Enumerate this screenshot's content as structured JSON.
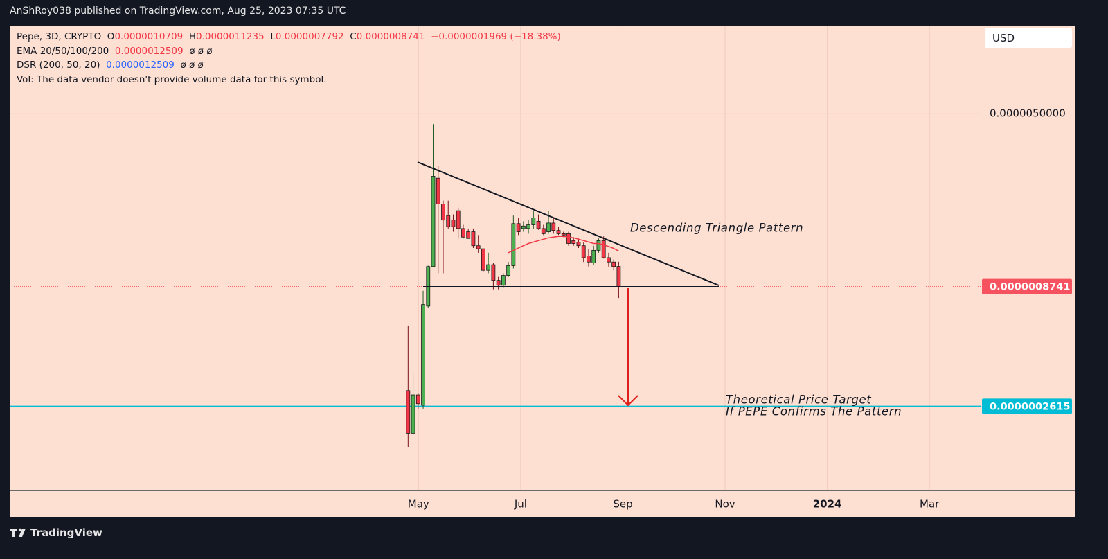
{
  "header": {
    "publisher": "AnShRoy038 published on TradingView.com, Aug 25, 2023 07:35 UTC"
  },
  "legend": {
    "symbol": "Pepe, 3D, CRYPTO",
    "open_key": "O",
    "open": "0.0000010709",
    "high_key": "H",
    "high": "0.0000011235",
    "low_key": "L",
    "low": "0.0000007792",
    "close_key": "C",
    "close": "0.0000008741",
    "change": "−0.0000001969 (−18.38%)",
    "ema_name": "EMA 20/50/100/200",
    "ema_value": "0.0000012509",
    "ema_rest": "ø ø ø",
    "dsr_name": "DSR (200, 50, 20)",
    "dsr_value": "0.0000012509",
    "dsr_rest": "ø ø ø",
    "volume_note": "Vol: The data vendor doesn't provide volume data for this symbol."
  },
  "currency_button": "USD",
  "footer": {
    "brand": "TradingView"
  },
  "chart_data": {
    "type": "candlestick",
    "log_scale": true,
    "grid": true,
    "up_color": "#4caf50",
    "down_color": "#f23645",
    "open": [
      3.06e-07,
      1.99e-07,
      2.93e-07,
      2.64e-07,
      7.18e-07,
      1.07e-06,
      2.61e-06,
      2.01e-06,
      1.79e-06,
      1.71e-06,
      1.88e-06,
      1.57e-06,
      1.52e-06,
      1.52e-06,
      1.32e-06,
      1.28e-06,
      1.03e-06,
      1.09e-06,
      9.31e-07,
      8.86e-07,
      9.78e-07,
      1.08e-06,
      1.65e-06,
      1.57e-06,
      1.57e-06,
      1.63e-06,
      1.69e-06,
      1.57e-06,
      1.52e-06,
      1.66e-06,
      1.54e-06,
      1.49e-06,
      1.49e-06,
      1.39e-06,
      1.37e-06,
      1.32e-06,
      1.19e-06,
      1.11e-06,
      1.26e-06,
      1.39e-06,
      1.17e-06,
      1.12e-06,
      1.0709e-06
    ],
    "high": [
      5.9e-07,
      3.67e-07,
      2.97e-07,
      8.38e-07,
      1.08e-06,
      4.5e-06,
      2.96e-06,
      2.08e-06,
      2.08e-06,
      1.81e-06,
      1.94e-06,
      1.63e-06,
      1.57e-06,
      1.57e-06,
      1.47e-06,
      1.28e-06,
      1.23e-06,
      1.11e-06,
      9.64e-07,
      1e-06,
      1.12e-06,
      1.79e-06,
      1.75e-06,
      1.69e-06,
      1.71e-06,
      1.88e-06,
      1.81e-06,
      1.63e-06,
      1.88e-06,
      1.75e-06,
      1.6e-06,
      1.52e-06,
      1.52e-06,
      1.44e-06,
      1.42e-06,
      1.37e-06,
      1.28e-06,
      1.32e-06,
      1.42e-06,
      1.45e-06,
      1.23e-06,
      1.15e-06,
      1.1235e-06
    ],
    "low": [
      1.73e-07,
      1.99e-07,
      2.55e-07,
      2.55e-07,
      7.04e-07,
      1.07e-06,
      1e-06,
      1e-06,
      1.57e-06,
      1.52e-06,
      1.42e-06,
      1.42e-06,
      1.42e-06,
      1.29e-06,
      1.23e-06,
      1.02e-06,
      1e-06,
      8.5e-07,
      8.5e-07,
      8.62e-07,
      9.64e-07,
      1.05e-06,
      1.47e-06,
      1.52e-06,
      1.49e-06,
      1.57e-06,
      1.55e-06,
      1.47e-06,
      1.49e-06,
      1.49e-06,
      1.47e-06,
      1.44e-06,
      1.32e-06,
      1.32e-06,
      1.29e-06,
      1.12e-06,
      1.07e-06,
      1.085e-06,
      1.23e-06,
      1.16e-06,
      1.07e-06,
      1.03e-06,
      7.792e-07
    ],
    "close": [
      1.99e-07,
      2.93e-07,
      2.68e-07,
      7.29e-07,
      1.07e-06,
      2.66e-06,
      2.01e-06,
      1.71e-06,
      1.6e-06,
      1.6e-06,
      1.57e-06,
      1.44e-06,
      1.42e-06,
      1.32e-06,
      1.28e-06,
      1.03e-06,
      1.09e-06,
      9.31e-07,
      8.86e-07,
      9.78e-07,
      1.08e-06,
      1.65e-06,
      1.52e-06,
      1.61e-06,
      1.63e-06,
      1.75e-06,
      1.57e-06,
      1.49e-06,
      1.66e-06,
      1.54e-06,
      1.49e-06,
      1.47e-06,
      1.35e-06,
      1.35e-06,
      1.32e-06,
      1.17e-06,
      1.12e-06,
      1.26e-06,
      1.39e-06,
      1.17e-06,
      1.12e-06,
      1.07e-06,
      8.741e-07
    ],
    "series": [
      {
        "name": "EMA 20",
        "color": "#f23645",
        "values": [
          null,
          null,
          null,
          null,
          null,
          null,
          null,
          null,
          null,
          null,
          null,
          null,
          null,
          null,
          null,
          null,
          null,
          null,
          null,
          null,
          1.23e-06,
          1.26e-06,
          1.29e-06,
          1.32e-06,
          1.35e-06,
          1.37e-06,
          1.39e-06,
          1.41e-06,
          1.43e-06,
          1.44e-06,
          1.45e-06,
          1.45e-06,
          1.44e-06,
          1.43e-06,
          1.41e-06,
          1.39e-06,
          1.37e-06,
          1.35e-06,
          1.35e-06,
          1.33e-06,
          1.31e-06,
          1.285e-06,
          1.2509e-06
        ]
      }
    ],
    "ylim": [
      1.117e-07,
      1.208e-05
    ],
    "yticks": [
      {
        "value": 5e-06,
        "label": "0.0000050000"
      }
    ],
    "xlim": [
      "2022-09",
      "2024-04"
    ],
    "xticks": [
      {
        "value": "2023-05",
        "label": "May"
      },
      {
        "value": "2023-07",
        "label": "Jul"
      },
      {
        "value": "2023-09",
        "label": "Sep"
      },
      {
        "value": "2023-11",
        "label": "Nov"
      },
      {
        "value": "2024-01",
        "label": "2024"
      },
      {
        "value": "2024-03",
        "label": "Mar"
      }
    ],
    "price_lines": [
      {
        "value": 8.741e-07,
        "label": "0.0000008741",
        "color": "#f7525f",
        "style": "dotted"
      },
      {
        "value": 2.615e-07,
        "label": "0.0000002615",
        "color": "#00bcd4",
        "style": "solid"
      }
    ],
    "annotations": [
      "Descending Triangle Pattern",
      "Theoretical Price Target",
      "If PEPE Confirms The Pattern"
    ]
  }
}
